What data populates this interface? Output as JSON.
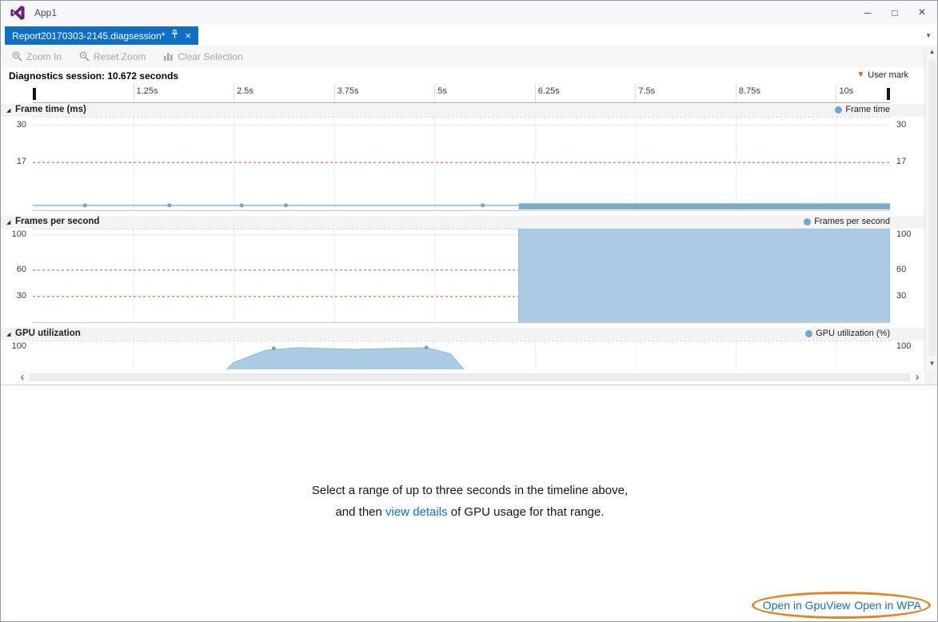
{
  "window": {
    "title": "App1"
  },
  "tab": {
    "label": "Report20170303-2145.diagsession*"
  },
  "toolbar": {
    "zoom_in": "Zoom In",
    "reset_zoom": "Reset Zoom",
    "clear_selection": "Clear Selection"
  },
  "session": {
    "title": "Diagnostics session: 10.672 seconds",
    "user_mark": "User mark"
  },
  "timeline": {
    "duration_s": 10.672,
    "ticks": [
      {
        "t": 1.25,
        "label": "1.25s"
      },
      {
        "t": 2.5,
        "label": "2.5s"
      },
      {
        "t": 3.75,
        "label": "3.75s"
      },
      {
        "t": 5,
        "label": "5s"
      },
      {
        "t": 6.25,
        "label": "6.25s"
      },
      {
        "t": 7.5,
        "label": "7.5s"
      },
      {
        "t": 8.75,
        "label": "8.75s"
      },
      {
        "t": 10,
        "label": "10s"
      }
    ]
  },
  "chart_data": [
    {
      "id": "frame_time",
      "type": "line",
      "title": "Frame time (ms)",
      "legend": "Frame time",
      "x_range_s": [
        0,
        10.672
      ],
      "y_max": 33,
      "grid_x_step": 1.25,
      "y_axis_labels": [
        {
          "v": 30,
          "text": "30"
        },
        {
          "v": 17,
          "text": "17"
        }
      ],
      "h_lines": [
        {
          "v": 33,
          "color": "#c8c8c8",
          "dash": "2,3"
        },
        {
          "v": 30,
          "color": "#e2e2e2"
        },
        {
          "v": 17,
          "color": "#dd4b39",
          "dash": "3,3"
        }
      ],
      "lines": [
        {
          "color": "#a3c6de",
          "width": 2,
          "points": [
            [
              0,
              2
            ],
            [
              6.05,
              2
            ]
          ]
        }
      ],
      "areas": [
        {
          "fill": "#7aa9ca",
          "points": [
            [
              6.05,
              2.7
            ],
            [
              10.672,
              2.7
            ],
            [
              10.672,
              0.6
            ],
            [
              6.05,
              0.6
            ]
          ]
        }
      ],
      "dots": [
        [
          0.65,
          2
        ],
        [
          1.7,
          2
        ],
        [
          2.6,
          2
        ],
        [
          3.15,
          2
        ],
        [
          5.6,
          2
        ]
      ],
      "dot_color": "#6fa6cb"
    },
    {
      "id": "fps",
      "type": "area",
      "title": "Frames per second",
      "legend": "Frames per second",
      "x_range_s": [
        0,
        10.672
      ],
      "y_max": 107,
      "grid_x_step": 1.25,
      "y_axis_labels": [
        {
          "v": 100,
          "text": "100"
        },
        {
          "v": 60,
          "text": "60"
        },
        {
          "v": 30,
          "text": "30"
        }
      ],
      "h_lines": [
        {
          "v": 107,
          "color": "#c8c8c8",
          "dash": "2,3"
        },
        {
          "v": 100,
          "color": "#e2e2e2"
        },
        {
          "v": 60,
          "color": "#dd4b39",
          "dash": "3,3"
        },
        {
          "v": 30,
          "color": "#dd4b39",
          "dash": "3,3"
        }
      ],
      "lines": [],
      "areas": [
        {
          "fill": "#abcce3",
          "stroke": "#8ab5d6",
          "points": [
            [
              6.05,
              0
            ],
            [
              6.05,
              107
            ],
            [
              10.672,
              107
            ],
            [
              10.672,
              0
            ]
          ]
        }
      ],
      "dots": []
    },
    {
      "id": "gpu",
      "type": "area",
      "title": "GPU utilization",
      "legend": "GPU utilization (%)",
      "x_range_s": [
        0,
        10.672
      ],
      "y_max": 107,
      "grid_x_step": 1.25,
      "y_axis_labels": [
        {
          "v": 100,
          "text": "100"
        }
      ],
      "h_lines": [
        {
          "v": 107,
          "color": "#c8c8c8",
          "dash": "2,3"
        }
      ],
      "lines": [],
      "areas": [
        {
          "fill": "#abcce3",
          "stroke": "#8ab5d6",
          "points": [
            [
              1.85,
              0
            ],
            [
              2.2,
              55
            ],
            [
              2.5,
              82
            ],
            [
              2.9,
              96
            ],
            [
              3.3,
              99
            ],
            [
              4.0,
              97
            ],
            [
              4.9,
              99
            ],
            [
              5.2,
              92
            ],
            [
              5.5,
              60
            ],
            [
              5.85,
              0
            ]
          ]
        }
      ],
      "dots": [
        [
          3.0,
          98
        ],
        [
          4.9,
          99
        ]
      ],
      "dot_color": "#6fa6cb"
    }
  ],
  "details": {
    "line1": "Select a range of up to three seconds in the timeline above,",
    "line2_pre": "and then ",
    "link": "view details",
    "line2_post": " of GPU usage for that range."
  },
  "footer": {
    "gpuview": "Open in GpuView",
    "wpa": "Open in WPA"
  },
  "icons": {
    "minimize": "─",
    "maximize": "□",
    "close": "×",
    "caret_down": "▼",
    "expander": "◢",
    "user_mark": "▼",
    "scroll_left": "‹",
    "scroll_right": "›",
    "scroll_up": "▲",
    "scroll_down": "▼"
  },
  "colors": {
    "tab_blue": "#0d6fc5",
    "link_blue": "#0e70c0",
    "legend_dot": "#6fa6cb",
    "user_mark_orange": "#e2571b",
    "annotation_orange": "#e8821e",
    "disabled_text": "#a6a6a6",
    "grid_vertical": "#ebebeb"
  }
}
